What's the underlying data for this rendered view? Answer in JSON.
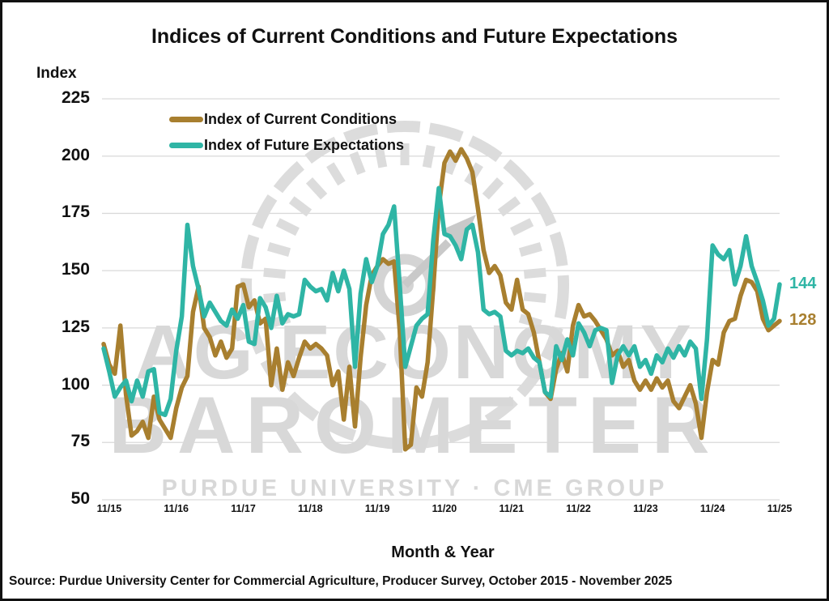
{
  "title": "Indices of Current Conditions and Future Expectations",
  "y_axis": {
    "title": "Index"
  },
  "x_axis": {
    "title": "Month & Year"
  },
  "end_labels": [
    {
      "text": "144",
      "value": 144,
      "color": "#2FB5A5"
    },
    {
      "text": "128",
      "value": 128,
      "color": "#A87F2F"
    }
  ],
  "watermark": {
    "line1": "AG ECONOMY",
    "line2": "BAROMETER",
    "line3": "PURDUE UNIVERSITY · CME GROUP"
  },
  "source": "Source: Purdue University Center for Commercial Agriculture, Producer Survey, October 2015 - November 2025",
  "chart_data": {
    "type": "line",
    "title": "Indices of Current Conditions and Future Expectations",
    "xlabel": "Month & Year",
    "ylabel": "Index",
    "x_unit": "month",
    "x_start": "10/2015",
    "x_end": "11/2025",
    "x_tick_labels": [
      "11/15",
      "11/16",
      "11/17",
      "11/18",
      "11/19",
      "11/20",
      "11/21",
      "11/22",
      "11/23",
      "11/24",
      "11/25"
    ],
    "y_ticks": [
      225,
      200,
      175,
      150,
      125,
      100,
      75,
      50
    ],
    "ylim": [
      50,
      225
    ],
    "grid": "horizontal",
    "legend_position": "top-left-inside",
    "series": [
      {
        "name": "Index of Current Conditions",
        "color": "#A87F2F",
        "last_value_label": "128",
        "values": [
          118,
          109,
          105,
          126,
          96,
          78,
          80,
          84,
          77,
          95,
          85,
          81,
          77,
          90,
          99,
          104,
          132,
          143,
          125,
          121,
          113,
          119,
          112,
          116,
          143,
          144,
          134,
          137,
          127,
          129,
          100,
          116,
          98,
          110,
          104,
          112,
          119,
          116,
          118,
          116,
          113,
          100,
          106,
          85,
          108,
          82,
          112,
          135,
          148,
          152,
          155,
          153,
          154,
          124,
          72,
          74,
          99,
          95,
          110,
          142,
          178,
          197,
          202,
          198,
          203,
          199,
          193,
          177,
          159,
          149,
          152,
          148,
          136,
          133,
          146,
          133,
          131,
          123,
          110,
          97,
          94,
          107,
          114,
          106,
          126,
          135,
          130,
          131,
          128,
          124,
          120,
          113,
          115,
          108,
          111,
          102,
          98,
          102,
          98,
          103,
          99,
          102,
          93,
          90,
          95,
          100,
          92,
          77,
          97,
          111,
          109,
          123,
          128,
          129,
          139,
          146,
          145,
          141,
          129,
          124,
          126,
          128
        ]
      },
      {
        "name": "Index of Future Expectations",
        "color": "#2FB5A5",
        "last_value_label": "144",
        "values": [
          116,
          106,
          95,
          99,
          102,
          93,
          102,
          95,
          106,
          107,
          88,
          87,
          94,
          115,
          130,
          170,
          152,
          142,
          130,
          136,
          132,
          128,
          126,
          133,
          129,
          135,
          119,
          118,
          138,
          134,
          125,
          139,
          127,
          131,
          130,
          131,
          146,
          143,
          141,
          142,
          137,
          149,
          141,
          150,
          142,
          108,
          140,
          155,
          145,
          152,
          166,
          170,
          178,
          144,
          108,
          117,
          126,
          129,
          131,
          163,
          186,
          166,
          165,
          161,
          155,
          168,
          170,
          158,
          133,
          131,
          132,
          130,
          115,
          113,
          115,
          114,
          116,
          112,
          110,
          97,
          95,
          117,
          111,
          120,
          113,
          127,
          123,
          117,
          124,
          125,
          124,
          101,
          113,
          117,
          113,
          117,
          108,
          111,
          105,
          113,
          110,
          116,
          112,
          117,
          113,
          119,
          116,
          94,
          120,
          161,
          157,
          155,
          159,
          144,
          152,
          165,
          152,
          145,
          137,
          126,
          129,
          144
        ]
      }
    ]
  }
}
